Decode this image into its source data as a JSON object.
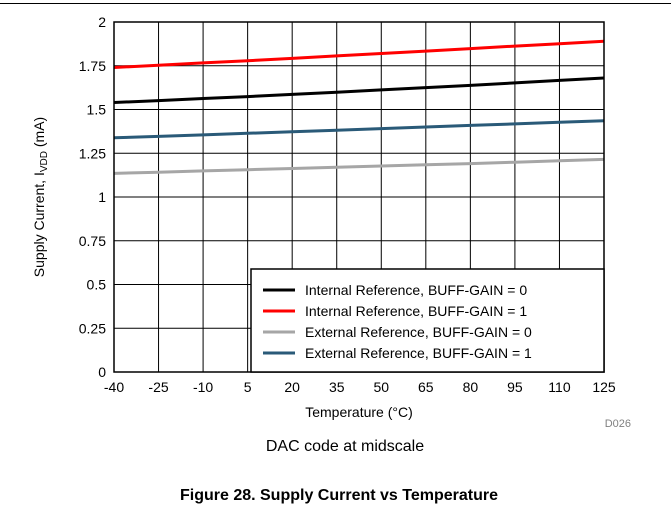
{
  "chart_data": {
    "type": "line",
    "title": "",
    "xlabel": "Temperature (°C)",
    "ylabel_main": "Supply Current, I",
    "ylabel_sub": "VDD",
    "ylabel_unit": " (mA)",
    "xlim": [
      -40,
      125
    ],
    "ylim": [
      0,
      2
    ],
    "x_ticks": [
      -40,
      -25,
      -10,
      5,
      20,
      35,
      50,
      65,
      80,
      95,
      110,
      125
    ],
    "y_ticks": [
      0,
      0.25,
      0.5,
      0.75,
      1,
      1.25,
      1.5,
      1.75,
      2
    ],
    "y_tick_labels": [
      "0",
      "0.25",
      "0.5",
      "0.75",
      "1",
      "1.25",
      "1.5",
      "1.75",
      "2"
    ],
    "grid": true,
    "legend_position": "bottom-right",
    "series": [
      {
        "name": "Internal Reference, BUFF-GAIN = 0",
        "color": "#000000",
        "x": [
          -40,
          -25,
          -10,
          5,
          20,
          35,
          50,
          65,
          80,
          95,
          110,
          125
        ],
        "y": [
          1.54,
          1.551,
          1.563,
          1.574,
          1.586,
          1.599,
          1.612,
          1.625,
          1.638,
          1.652,
          1.666,
          1.68
        ]
      },
      {
        "name": "Internal Reference, BUFF-GAIN = 1",
        "color": "#ff0000",
        "x": [
          -40,
          -25,
          -10,
          5,
          20,
          35,
          50,
          65,
          80,
          95,
          110,
          125
        ],
        "y": [
          1.74,
          1.753,
          1.766,
          1.779,
          1.792,
          1.806,
          1.82,
          1.834,
          1.848,
          1.862,
          1.876,
          1.89
        ]
      },
      {
        "name": "External Reference, BUFF-GAIN = 0",
        "color": "#a6a6a6",
        "x": [
          -40,
          -25,
          -10,
          5,
          20,
          35,
          50,
          65,
          80,
          95,
          110,
          125
        ],
        "y": [
          1.135,
          1.142,
          1.149,
          1.156,
          1.163,
          1.17,
          1.177,
          1.184,
          1.191,
          1.199,
          1.207,
          1.215
        ]
      },
      {
        "name": "External Reference, BUFF-GAIN = 1",
        "color": "#2a5a78",
        "x": [
          -40,
          -25,
          -10,
          5,
          20,
          35,
          50,
          65,
          80,
          95,
          110,
          125
        ],
        "y": [
          1.338,
          1.346,
          1.355,
          1.364,
          1.373,
          1.382,
          1.391,
          1.4,
          1.409,
          1.418,
          1.427,
          1.436
        ]
      }
    ],
    "annotation": "DAC code at midscale",
    "figure_code": "D026"
  },
  "caption": "Figure 28. Supply Current vs Temperature"
}
